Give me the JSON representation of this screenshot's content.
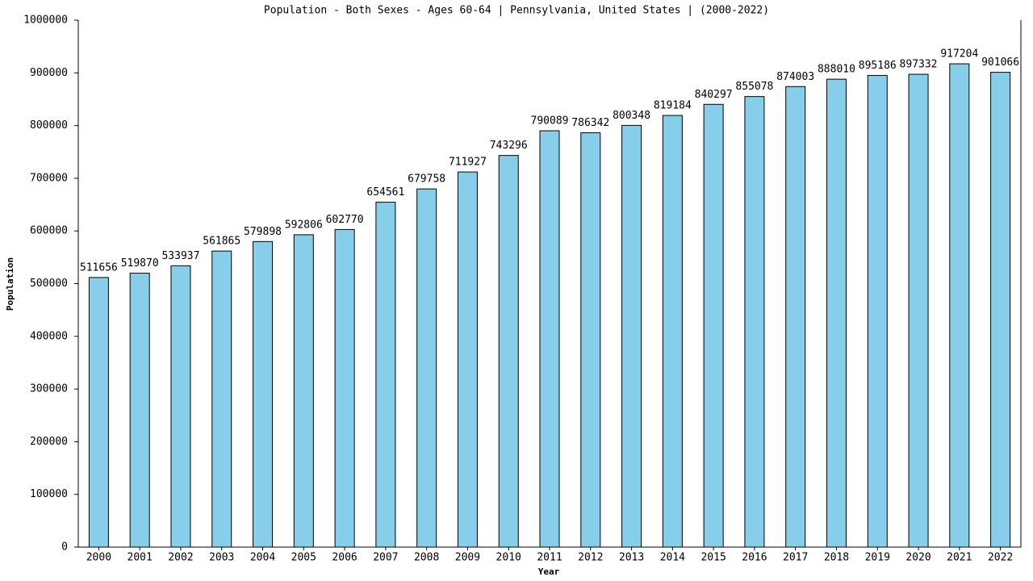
{
  "chart_data": {
    "type": "bar",
    "title": "Population - Both Sexes - Ages 60-64 | Pennsylvania, United States |  (2000-2022)",
    "x_label": "Year",
    "y_label": "Population",
    "categories": [
      "2000",
      "2001",
      "2002",
      "2003",
      "2004",
      "2005",
      "2006",
      "2007",
      "2008",
      "2009",
      "2010",
      "2011",
      "2012",
      "2013",
      "2014",
      "2015",
      "2016",
      "2017",
      "2018",
      "2019",
      "2020",
      "2021",
      "2022"
    ],
    "values": [
      511656,
      519870,
      533937,
      561865,
      579898,
      592806,
      602770,
      654561,
      679758,
      711927,
      743296,
      790089,
      786342,
      800348,
      819184,
      840297,
      855078,
      874003,
      888010,
      895186,
      897332,
      917204,
      901066
    ],
    "color": "#87ceeb",
    "ylim": [
      0,
      1000000
    ],
    "yticks": [
      0,
      100000,
      200000,
      300000,
      400000,
      500000,
      600000,
      700000,
      800000,
      900000,
      1000000
    ],
    "grid": false
  }
}
